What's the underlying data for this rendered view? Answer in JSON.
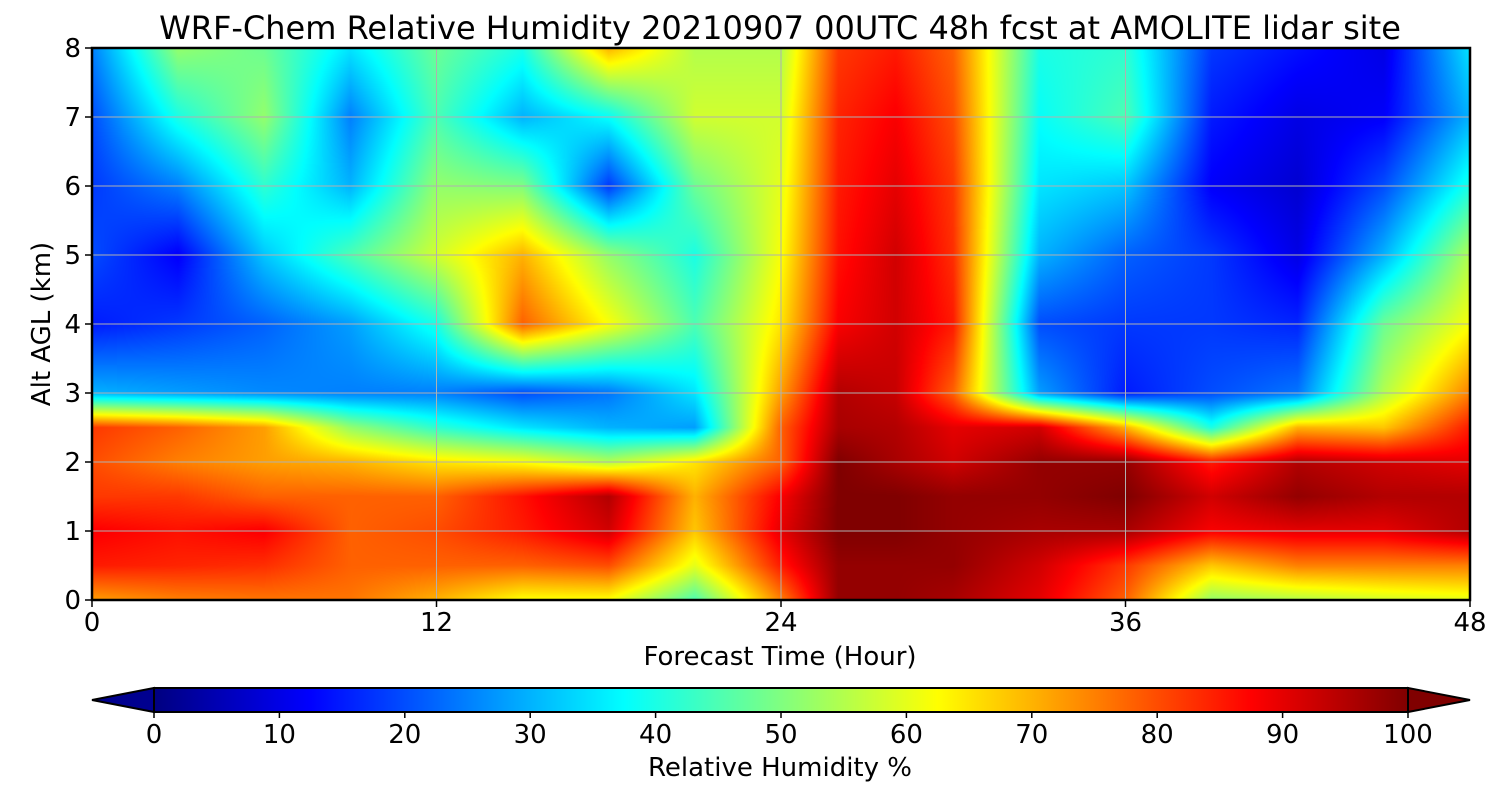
{
  "chart_data": {
    "type": "heatmap",
    "title": "WRF-Chem Relative Humidity 20210907 00UTC 48h fcst at AMOLITE lidar site",
    "xlabel": "Forecast Time (Hour)",
    "ylabel": "Alt AGL (km)",
    "xlim": [
      0,
      48
    ],
    "ylim": [
      0,
      8
    ],
    "xticks": [
      0,
      12,
      24,
      36,
      48
    ],
    "xtick_labels": [
      "0",
      "12",
      "24",
      "36",
      "48"
    ],
    "yticks": [
      0,
      1,
      2,
      3,
      4,
      5,
      6,
      7,
      8
    ],
    "ytick_labels": [
      "0",
      "1",
      "2",
      "3",
      "4",
      "5",
      "6",
      "7",
      "8"
    ],
    "grid": true,
    "colormap": "jet",
    "colorbar": {
      "label": "Relative Humidity %",
      "range": [
        0,
        100
      ],
      "ticks": [
        0,
        10,
        20,
        30,
        40,
        50,
        60,
        70,
        80,
        90,
        100
      ],
      "tick_labels": [
        "0",
        "10",
        "20",
        "30",
        "40",
        "50",
        "60",
        "70",
        "80",
        "90",
        "100"
      ],
      "extend": "both",
      "orientation": "horizontal"
    },
    "x": [
      0,
      3,
      6,
      9,
      12,
      15,
      18,
      21,
      24,
      26,
      28,
      30,
      33,
      36,
      39,
      42,
      45,
      48
    ],
    "y": [
      0,
      0.5,
      1,
      1.5,
      2,
      2.5,
      3,
      4,
      5,
      6,
      7,
      8
    ],
    "z": [
      [
        72,
        75,
        76,
        76,
        70,
        62,
        62,
        45,
        75,
        98,
        98,
        96,
        90,
        78,
        52,
        55,
        58,
        60
      ],
      [
        85,
        84,
        83,
        78,
        78,
        78,
        80,
        60,
        85,
        98,
        98,
        98,
        92,
        82,
        68,
        75,
        75,
        75
      ],
      [
        88,
        86,
        88,
        78,
        80,
        85,
        92,
        68,
        90,
        100,
        100,
        98,
        96,
        96,
        88,
        90,
        90,
        95
      ],
      [
        82,
        82,
        78,
        78,
        78,
        86,
        95,
        70,
        88,
        100,
        100,
        98,
        98,
        100,
        92,
        98,
        95,
        95
      ],
      [
        80,
        75,
        72,
        70,
        65,
        62,
        55,
        65,
        78,
        100,
        96,
        92,
        98,
        98,
        85,
        95,
        92,
        90
      ],
      [
        82,
        78,
        72,
        52,
        42,
        35,
        30,
        28,
        78,
        96,
        95,
        90,
        92,
        70,
        40,
        70,
        68,
        85
      ],
      [
        30,
        28,
        26,
        25,
        25,
        20,
        24,
        35,
        72,
        95,
        93,
        78,
        28,
        15,
        20,
        24,
        55,
        75
      ],
      [
        15,
        18,
        22,
        28,
        40,
        78,
        62,
        45,
        65,
        88,
        92,
        85,
        20,
        18,
        18,
        16,
        48,
        62
      ],
      [
        20,
        12,
        32,
        45,
        58,
        70,
        52,
        40,
        62,
        86,
        92,
        83,
        30,
        22,
        18,
        10,
        30,
        55
      ],
      [
        18,
        25,
        42,
        30,
        52,
        50,
        18,
        48,
        60,
        85,
        90,
        82,
        35,
        32,
        12,
        8,
        20,
        40
      ],
      [
        20,
        40,
        52,
        25,
        45,
        30,
        38,
        58,
        58,
        84,
        88,
        80,
        38,
        45,
        15,
        10,
        12,
        30
      ],
      [
        25,
        52,
        48,
        35,
        48,
        40,
        70,
        55,
        55,
        82,
        85,
        78,
        40,
        42,
        18,
        14,
        10,
        35
      ]
    ]
  }
}
